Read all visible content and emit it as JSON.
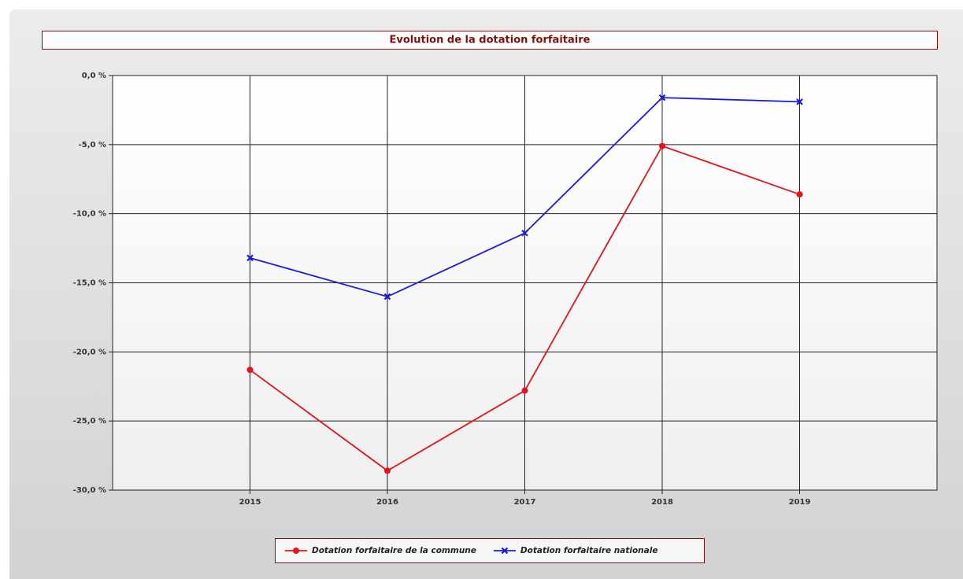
{
  "chart_data": {
    "type": "line",
    "title": "Evolution de la dotation forfaitaire",
    "x": [
      2015,
      2016,
      2017,
      2018,
      2019
    ],
    "xlim": [
      2014,
      2020
    ],
    "xticks": [
      2015,
      2016,
      2017,
      2018,
      2019
    ],
    "ylim": [
      -30,
      0
    ],
    "yticks": [
      {
        "value": 0,
        "label": "0,0 %"
      },
      {
        "value": -5,
        "label": "-5,0 %"
      },
      {
        "value": -10,
        "label": "-10,0 %"
      },
      {
        "value": -15,
        "label": "-15,0 %"
      },
      {
        "value": -20,
        "label": "-20,0 %"
      },
      {
        "value": -25,
        "label": "-25,0 %"
      },
      {
        "value": -30,
        "label": "-30,0 %"
      }
    ],
    "grid": true,
    "legend": "bottom",
    "series": [
      {
        "name": "Dotation forfaitaire de la commune",
        "color": "#e3141b",
        "marker": "circle",
        "values": [
          -21.3,
          -28.6,
          -22.8,
          -5.1,
          -8.6
        ]
      },
      {
        "name": "Dotation forfaitaire nationale",
        "color": "#1a1ae0",
        "marker": "x",
        "values": [
          -13.2,
          -16.0,
          -11.4,
          -1.6,
          -1.9
        ]
      }
    ]
  }
}
